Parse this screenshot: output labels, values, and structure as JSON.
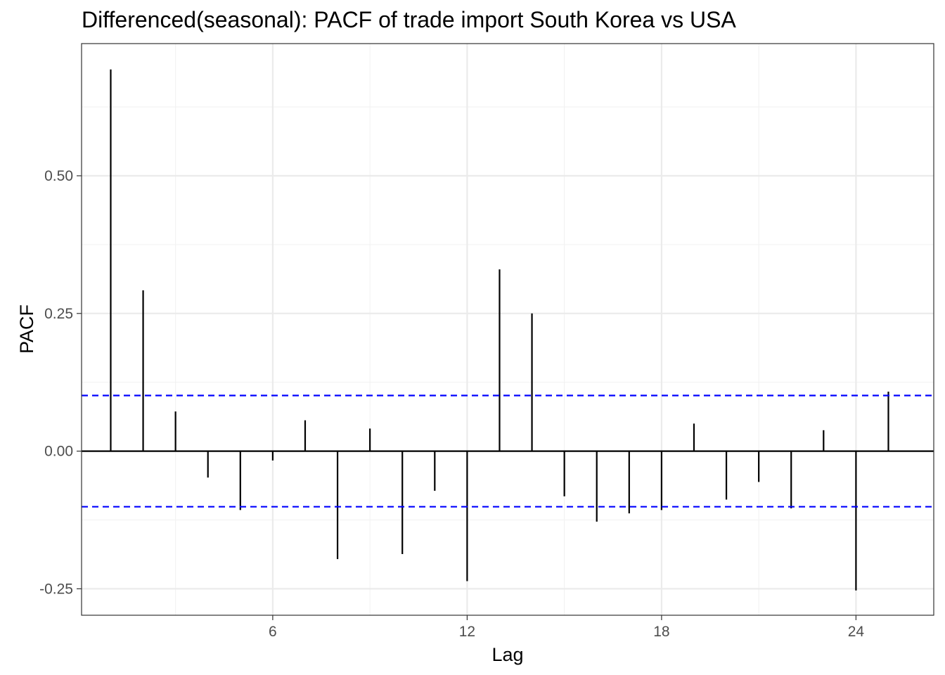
{
  "chart_data": {
    "type": "bar",
    "title": "Differenced(seasonal): PACF of trade import South Korea vs USA",
    "xlabel": "Lag",
    "ylabel": "PACF",
    "x": [
      1,
      2,
      3,
      4,
      5,
      6,
      7,
      8,
      9,
      10,
      11,
      12,
      13,
      14,
      15,
      16,
      17,
      18,
      19,
      20,
      21,
      22,
      23,
      24,
      25
    ],
    "values": [
      0.693,
      0.292,
      0.072,
      -0.048,
      -0.107,
      -0.017,
      0.056,
      -0.196,
      0.041,
      -0.187,
      -0.072,
      -0.236,
      0.33,
      0.25,
      -0.082,
      -0.128,
      -0.113,
      -0.107,
      0.05,
      -0.088,
      -0.056,
      -0.104,
      0.038,
      -0.253,
      0.108
    ],
    "confidence_bounds": [
      0.101,
      -0.101
    ],
    "xlim": [
      0.1,
      26.4
    ],
    "ylim": [
      -0.298,
      0.74
    ],
    "x_ticks": [
      6,
      12,
      18,
      24
    ],
    "y_ticks": [
      -0.25,
      0,
      0.25,
      0.5
    ],
    "x_tick_labels": [
      "6",
      "12",
      "18",
      "24"
    ],
    "y_tick_labels": [
      "-0.25",
      "0.00",
      "0.25",
      "0.50"
    ],
    "grid": true,
    "colors": {
      "bars": "#000000",
      "confidence_line": "#0000ff",
      "grid_major": "#ebebeb",
      "grid_minor": "#f2f2f2",
      "panel_border": "#333333"
    }
  }
}
